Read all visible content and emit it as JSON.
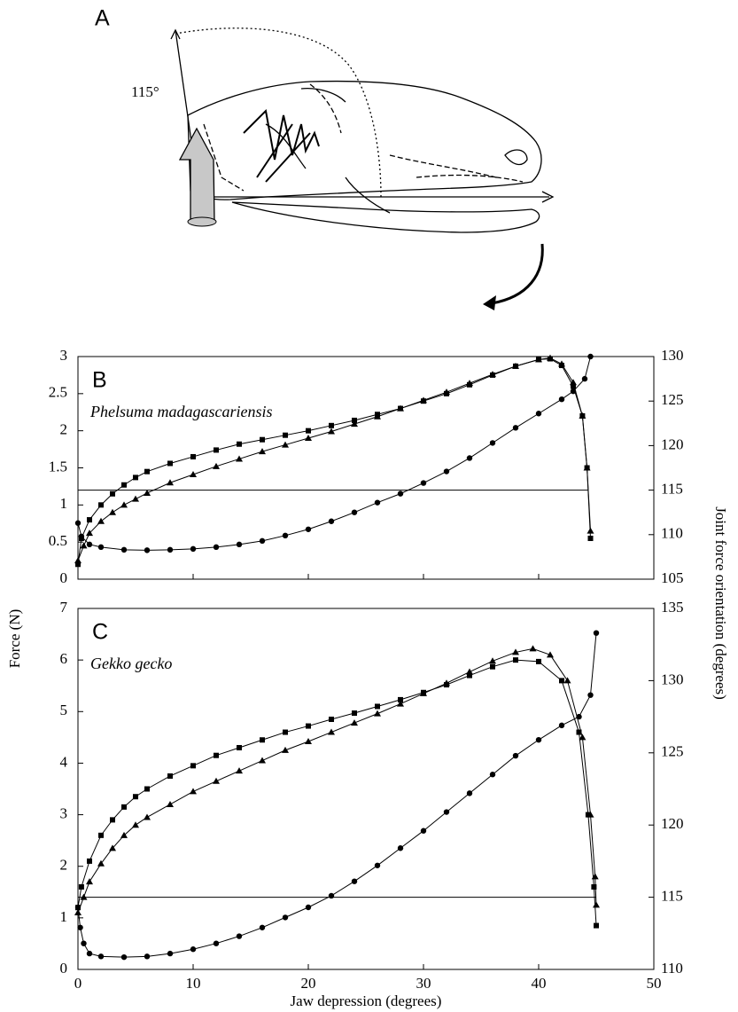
{
  "panel_a": {
    "label": "A",
    "angle_label": "115°"
  },
  "figure": {
    "ylabel": "Force (N)",
    "y2label": "Joint force orientation (degrees)",
    "xlabel": "Jaw depression (degrees)"
  },
  "chart_data": [
    {
      "type": "scatter-line",
      "panel_label": "B",
      "subtitle": "Phelsuma madagascariensis",
      "xlim": [
        0,
        50
      ],
      "xticks": [
        0,
        10,
        20,
        30,
        40,
        50
      ],
      "xtick_labels": false,
      "ylim": [
        0,
        3
      ],
      "yticks": [
        0,
        0.5,
        1,
        1.5,
        2,
        2.5,
        3
      ],
      "y2lim": [
        105,
        130
      ],
      "y2ticks": [
        105,
        110,
        115,
        120,
        125,
        130
      ],
      "reference_line": {
        "axis": "y2",
        "value": 115,
        "xlim": [
          0,
          44.3
        ]
      },
      "series": [
        {
          "marker": "square",
          "color": "#000000",
          "x": [
            0,
            0.3,
            1,
            2,
            3,
            4,
            5,
            6,
            8,
            10,
            12,
            14,
            16,
            18,
            20,
            22,
            24,
            26,
            28,
            30,
            32,
            34,
            36,
            38,
            40,
            41,
            42,
            43,
            43.8,
            44.2,
            44.5
          ],
          "values": [
            0.2,
            0.55,
            0.8,
            1.0,
            1.15,
            1.27,
            1.37,
            1.45,
            1.56,
            1.65,
            1.74,
            1.82,
            1.88,
            1.94,
            2.0,
            2.07,
            2.14,
            2.22,
            2.3,
            2.4,
            2.5,
            2.62,
            2.75,
            2.87,
            2.96,
            2.97,
            2.88,
            2.6,
            2.2,
            1.5,
            0.55
          ]
        },
        {
          "marker": "triangle",
          "color": "#000000",
          "x": [
            0,
            0.5,
            1,
            2,
            3,
            4,
            5,
            6,
            8,
            10,
            12,
            14,
            16,
            18,
            20,
            22,
            24,
            26,
            28,
            30,
            32,
            34,
            36,
            38,
            40,
            41,
            42,
            43,
            43.8,
            44.2,
            44.5
          ],
          "values": [
            0.25,
            0.45,
            0.62,
            0.78,
            0.9,
            1.0,
            1.08,
            1.16,
            1.3,
            1.41,
            1.52,
            1.62,
            1.72,
            1.81,
            1.9,
            1.99,
            2.09,
            2.19,
            2.3,
            2.41,
            2.52,
            2.64,
            2.76,
            2.87,
            2.96,
            2.98,
            2.9,
            2.65,
            2.2,
            1.5,
            0.65
          ]
        },
        {
          "marker": "circle",
          "color": "#000000",
          "axis": "y2",
          "x": [
            0,
            0.3,
            1,
            2,
            4,
            6,
            8,
            10,
            12,
            14,
            16,
            18,
            20,
            22,
            24,
            26,
            28,
            30,
            32,
            34,
            36,
            38,
            40,
            42,
            43,
            44,
            44.5
          ],
          "values": [
            111.3,
            109.8,
            108.9,
            108.6,
            108.3,
            108.25,
            108.3,
            108.4,
            108.6,
            108.9,
            109.3,
            109.9,
            110.6,
            111.5,
            112.5,
            113.6,
            114.6,
            115.8,
            117.1,
            118.6,
            120.3,
            122,
            123.6,
            125.2,
            126.1,
            127.5,
            130
          ]
        }
      ]
    },
    {
      "type": "scatter-line",
      "panel_label": "C",
      "subtitle": "Gekko gecko",
      "xlim": [
        0,
        50
      ],
      "xticks": [
        0,
        10,
        20,
        30,
        40,
        50
      ],
      "xtick_labels": true,
      "ylim": [
        0,
        7
      ],
      "yticks": [
        0,
        1,
        2,
        3,
        4,
        5,
        6,
        7
      ],
      "y2lim": [
        110,
        135
      ],
      "y2ticks": [
        110,
        115,
        120,
        125,
        130,
        135
      ],
      "reference_line": {
        "axis": "y2",
        "value": 115,
        "xlim": [
          0,
          45
        ]
      },
      "series": [
        {
          "marker": "square",
          "color": "#000000",
          "x": [
            0,
            0.3,
            1,
            2,
            3,
            4,
            5,
            6,
            8,
            10,
            12,
            14,
            16,
            18,
            20,
            22,
            24,
            26,
            28,
            30,
            32,
            34,
            36,
            38,
            40,
            42,
            43.5,
            44.3,
            44.8,
            45
          ],
          "values": [
            1.2,
            1.6,
            2.1,
            2.6,
            2.9,
            3.15,
            3.35,
            3.5,
            3.75,
            3.95,
            4.15,
            4.3,
            4.45,
            4.6,
            4.72,
            4.85,
            4.97,
            5.1,
            5.23,
            5.37,
            5.52,
            5.7,
            5.87,
            6.0,
            5.97,
            5.6,
            4.6,
            3.0,
            1.6,
            0.85
          ]
        },
        {
          "marker": "triangle",
          "color": "#000000",
          "x": [
            0,
            0.5,
            1,
            2,
            3,
            4,
            5,
            6,
            8,
            10,
            12,
            14,
            16,
            18,
            20,
            22,
            24,
            26,
            28,
            30,
            32,
            34,
            36,
            38,
            39.5,
            41,
            42.5,
            43.8,
            44.5,
            44.9,
            45
          ],
          "values": [
            1.1,
            1.4,
            1.7,
            2.05,
            2.35,
            2.6,
            2.8,
            2.95,
            3.2,
            3.45,
            3.65,
            3.85,
            4.05,
            4.25,
            4.42,
            4.6,
            4.78,
            4.96,
            5.15,
            5.35,
            5.55,
            5.77,
            5.98,
            6.15,
            6.22,
            6.1,
            5.6,
            4.5,
            3.0,
            1.8,
            1.25
          ]
        },
        {
          "marker": "circle",
          "color": "#000000",
          "axis": "y2",
          "x": [
            0,
            0.2,
            0.5,
            1,
            2,
            4,
            6,
            8,
            10,
            12,
            14,
            16,
            18,
            20,
            22,
            24,
            26,
            28,
            30,
            32,
            34,
            36,
            38,
            40,
            42,
            43.5,
            44.5,
            45
          ],
          "values": [
            114.3,
            112.9,
            111.8,
            111.1,
            110.9,
            110.85,
            110.9,
            111.1,
            111.4,
            111.8,
            112.3,
            112.9,
            113.6,
            114.3,
            115.1,
            116.1,
            117.2,
            118.4,
            119.6,
            120.9,
            122.2,
            123.5,
            124.8,
            125.9,
            126.9,
            127.5,
            129,
            133.3
          ]
        }
      ]
    }
  ]
}
